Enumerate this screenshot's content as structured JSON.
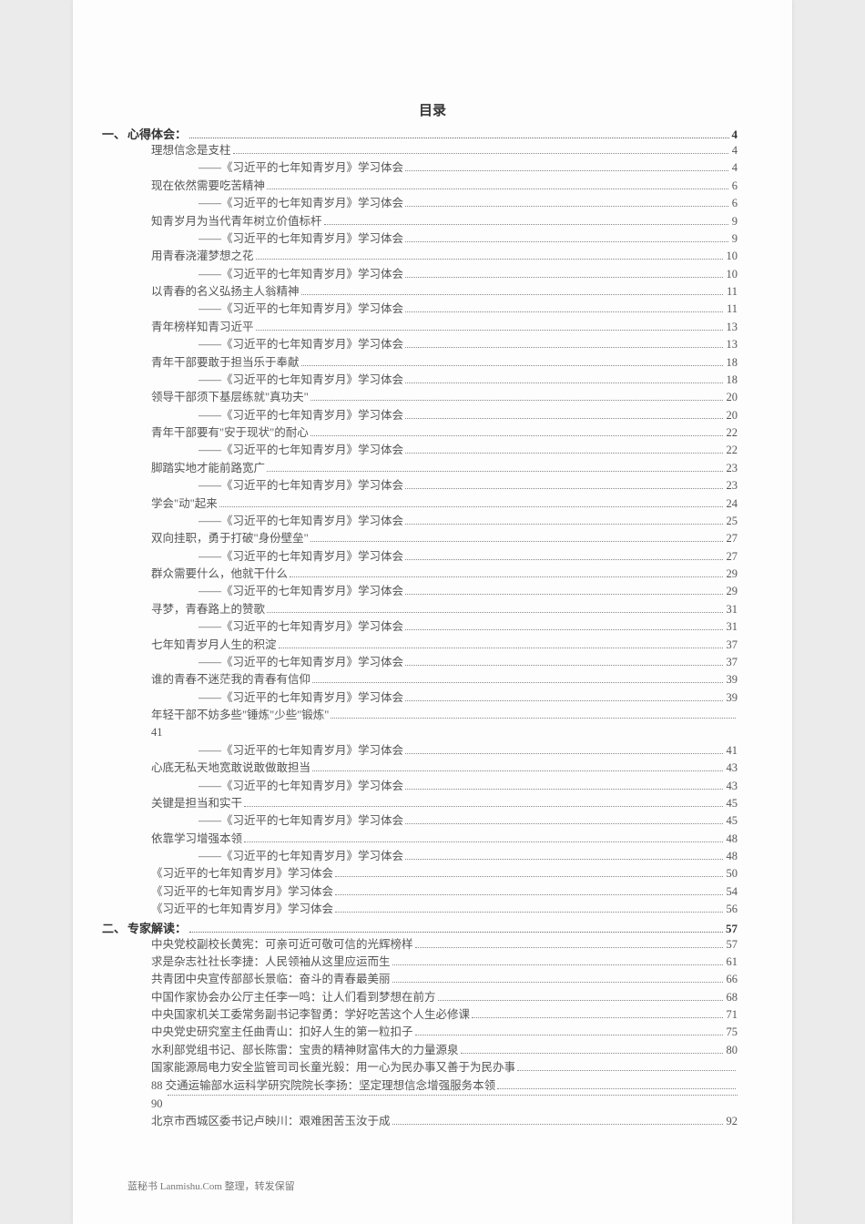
{
  "title": "目录",
  "section1": {
    "num": "一、",
    "label": "心得体会：",
    "page": "4"
  },
  "section2": {
    "num": "二、",
    "label": "专家解读：",
    "page": "57"
  },
  "toc1": [
    {
      "lvl": 1,
      "label": "理想信念是支柱",
      "page": "4"
    },
    {
      "lvl": 2,
      "label": "——《习近平的七年知青岁月》学习体会",
      "page": "4"
    },
    {
      "lvl": 1,
      "label": "现在依然需要吃苦精神",
      "page": "6"
    },
    {
      "lvl": 2,
      "label": "——《习近平的七年知青岁月》学习体会",
      "page": "6"
    },
    {
      "lvl": 1,
      "label": "知青岁月为当代青年树立价值标杆",
      "page": "9"
    },
    {
      "lvl": 2,
      "label": "——《习近平的七年知青岁月》学习体会",
      "page": "9"
    },
    {
      "lvl": 1,
      "label": "用青春浇灌梦想之花",
      "page": "10"
    },
    {
      "lvl": 2,
      "label": "——《习近平的七年知青岁月》学习体会",
      "page": "10"
    },
    {
      "lvl": 1,
      "label": "以青春的名义弘扬主人翁精神",
      "page": "11"
    },
    {
      "lvl": 2,
      "label": "——《习近平的七年知青岁月》学习体会",
      "page": "11"
    },
    {
      "lvl": 1,
      "label": "青年榜样知青习近平",
      "page": "13"
    },
    {
      "lvl": 2,
      "label": "——《习近平的七年知青岁月》学习体会",
      "page": "13"
    },
    {
      "lvl": 1,
      "label": "青年干部要敢于担当乐于奉献",
      "page": "18"
    },
    {
      "lvl": 2,
      "label": "——《习近平的七年知青岁月》学习体会",
      "page": "18"
    },
    {
      "lvl": 1,
      "label": "领导干部须下基层练就\"真功夫\"",
      "page": "20"
    },
    {
      "lvl": 2,
      "label": "——《习近平的七年知青岁月》学习体会",
      "page": "20"
    },
    {
      "lvl": 1,
      "label": "青年干部要有\"安于现状\"的耐心",
      "page": "22"
    },
    {
      "lvl": 2,
      "label": "——《习近平的七年知青岁月》学习体会",
      "page": "22"
    },
    {
      "lvl": 1,
      "label": "脚踏实地才能前路宽广",
      "page": "23"
    },
    {
      "lvl": 2,
      "label": "——《习近平的七年知青岁月》学习体会",
      "page": "23"
    },
    {
      "lvl": 1,
      "label": "学会\"动\"起来",
      "page": "24"
    },
    {
      "lvl": 2,
      "label": "——《习近平的七年知青岁月》学习体会",
      "page": "25"
    },
    {
      "lvl": 1,
      "label": "双向挂职，勇于打破\"身份壁垒\"",
      "page": "27"
    },
    {
      "lvl": 2,
      "label": "——《习近平的七年知青岁月》学习体会",
      "page": "27"
    },
    {
      "lvl": 1,
      "label": "群众需要什么，他就干什么",
      "page": "29"
    },
    {
      "lvl": 2,
      "label": "——《习近平的七年知青岁月》学习体会",
      "page": "29"
    },
    {
      "lvl": 1,
      "label": "寻梦，青春路上的赞歌",
      "page": "31"
    },
    {
      "lvl": 2,
      "label": "——《习近平的七年知青岁月》学习体会",
      "page": "31"
    },
    {
      "lvl": 1,
      "label": "七年知青岁月人生的积淀",
      "page": "37"
    },
    {
      "lvl": 2,
      "label": "——《习近平的七年知青岁月》学习体会",
      "page": "37"
    },
    {
      "lvl": 1,
      "label": "谁的青春不迷茫我的青春有信仰",
      "page": "39"
    },
    {
      "lvl": 2,
      "label": "——《习近平的七年知青岁月》学习体会",
      "page": "39"
    },
    {
      "lvl": 1,
      "label": "年轻干部不妨多些\"锤炼\"少些\"锻炼\"",
      "page": ""
    }
  ],
  "orphan41": "41",
  "toc1b": [
    {
      "lvl": 2,
      "label": "——《习近平的七年知青岁月》学习体会",
      "page": "41"
    },
    {
      "lvl": 1,
      "label": "心底无私天地宽敢说敢做敢担当",
      "page": "43"
    },
    {
      "lvl": 2,
      "label": "——《习近平的七年知青岁月》学习体会",
      "page": "43"
    },
    {
      "lvl": 1,
      "label": "关键是担当和实干",
      "page": "45"
    },
    {
      "lvl": 2,
      "label": "——《习近平的七年知青岁月》学习体会",
      "page": "45"
    },
    {
      "lvl": 1,
      "label": "依靠学习增强本领",
      "page": "48"
    },
    {
      "lvl": 2,
      "label": "——《习近平的七年知青岁月》学习体会",
      "page": "48"
    },
    {
      "lvl": 1,
      "label": "《习近平的七年知青岁月》学习体会",
      "page": "50"
    },
    {
      "lvl": 1,
      "label": "《习近平的七年知青岁月》学习体会",
      "page": "54"
    },
    {
      "lvl": 1,
      "label": "《习近平的七年知青岁月》学习体会",
      "page": "56"
    }
  ],
  "toc2": [
    {
      "lvl": 1,
      "label": "中央党校副校长黄宪：可亲可近可敬可信的光辉榜样",
      "page": "57"
    },
    {
      "lvl": 1,
      "label": "求是杂志社社长李捷：人民领袖从这里应运而生",
      "page": "61"
    },
    {
      "lvl": 1,
      "label": "共青团中央宣传部部长景临：奋斗的青春最美丽",
      "page": "66"
    },
    {
      "lvl": 1,
      "label": "中国作家协会办公厅主任李一鸣：让人们看到梦想在前方",
      "page": "68"
    },
    {
      "lvl": 1,
      "label": "中央国家机关工委常务副书记李智勇：学好吃苦这个人生必修课",
      "page": "71"
    },
    {
      "lvl": 1,
      "label": "中央党史研究室主任曲青山：扣好人生的第一粒扣子",
      "page": "75"
    },
    {
      "lvl": 1,
      "label": "水利部党组书记、部长陈雷：宝贵的精神财富伟大的力量源泉",
      "page": "80"
    },
    {
      "lvl": 1,
      "label": "国家能源局电力安全监管司司长童光毅：用一心为民办事又善于为民办事",
      "page": ""
    },
    {
      "lvl": 1,
      "label": "88 交通运输部水运科学研究院院长李扬：坚定理想信念增强服务本领",
      "page": ""
    }
  ],
  "orphan90": "90",
  "toc2b": [
    {
      "lvl": 1,
      "label": "北京市西城区委书记卢映川：艰难困苦玉汝于成",
      "page": "92"
    }
  ],
  "footer": "蓝秘书 Lanmishu.Com 整理，转发保留",
  "colors": {
    "page_bg": "#ebebeb",
    "paper_bg": "#fdfdfd",
    "text": "#555",
    "heading": "#333",
    "dots": "#888"
  }
}
